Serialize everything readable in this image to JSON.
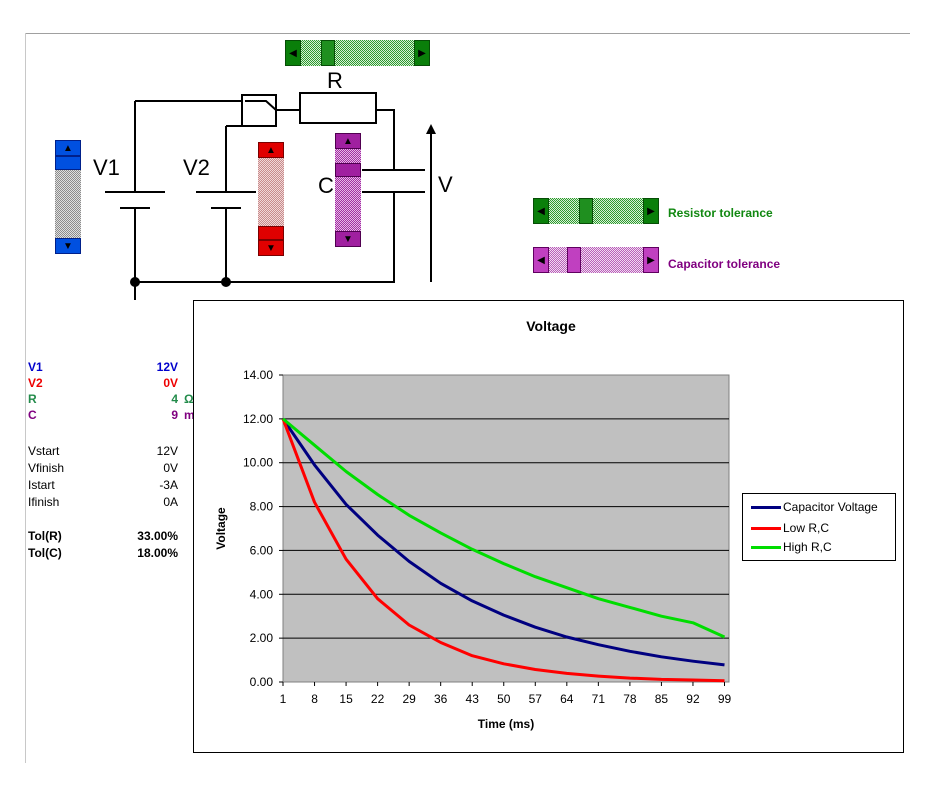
{
  "circuit": {
    "labels": {
      "r": "R",
      "v1": "V1",
      "v2": "V2",
      "c": "C",
      "v": "V"
    }
  },
  "controls": {
    "resistor_tolerance_label": "Resistor tolerance",
    "capacitor_tolerance_label": "Capacitor tolerance",
    "colors": {
      "green": "#118811",
      "purple": "#800080",
      "blue": "#0000cc",
      "red": "#ee0000"
    }
  },
  "values": {
    "v1": {
      "label": "V1",
      "value": "12V"
    },
    "v2": {
      "label": "V2",
      "value": "0V"
    },
    "r": {
      "label": "R",
      "value": "4",
      "unit": "Ω"
    },
    "c": {
      "label": "C",
      "value": "9",
      "unit": "mF"
    },
    "vstart": {
      "label": "Vstart",
      "value": "12V"
    },
    "vfinish": {
      "label": "Vfinish",
      "value": "0V"
    },
    "istart": {
      "label": "Istart",
      "value": "-3A"
    },
    "ifinish": {
      "label": "Ifinish",
      "value": "0A"
    },
    "tol_r": {
      "label": "Tol(R)",
      "value": "33.00%"
    },
    "tol_c": {
      "label": "Tol(C)",
      "value": "18.00%"
    }
  },
  "chart_data": {
    "type": "line",
    "title": "Voltage",
    "xlabel": "Time (ms)",
    "ylabel": "Voltage",
    "ylim": [
      0,
      14
    ],
    "xlim": [
      1,
      100
    ],
    "yticks": [
      "0.00",
      "2.00",
      "4.00",
      "6.00",
      "8.00",
      "10.00",
      "12.00",
      "14.00"
    ],
    "xticks": [
      "1",
      "8",
      "15",
      "22",
      "29",
      "36",
      "43",
      "50",
      "57",
      "64",
      "71",
      "78",
      "85",
      "92",
      "99"
    ],
    "legend_position": "right",
    "grid": true,
    "x": [
      1,
      8,
      15,
      22,
      29,
      36,
      43,
      50,
      57,
      64,
      71,
      78,
      85,
      92,
      99
    ],
    "series": [
      {
        "name": "Capacitor Voltage",
        "color": "#000080",
        "values": [
          12.0,
          9.9,
          8.1,
          6.7,
          5.5,
          4.5,
          3.7,
          3.05,
          2.5,
          2.05,
          1.7,
          1.4,
          1.15,
          0.95,
          0.78
        ]
      },
      {
        "name": "Low R,C",
        "color": "#ff0000",
        "values": [
          12.0,
          8.2,
          5.6,
          3.8,
          2.6,
          1.8,
          1.2,
          0.83,
          0.57,
          0.39,
          0.27,
          0.18,
          0.12,
          0.09,
          0.06
        ]
      },
      {
        "name": "High R,C",
        "color": "#00dd00",
        "values": [
          12.0,
          10.8,
          9.6,
          8.55,
          7.6,
          6.8,
          6.05,
          5.4,
          4.8,
          4.3,
          3.8,
          3.4,
          3.0,
          2.7,
          2.05
        ]
      }
    ]
  }
}
